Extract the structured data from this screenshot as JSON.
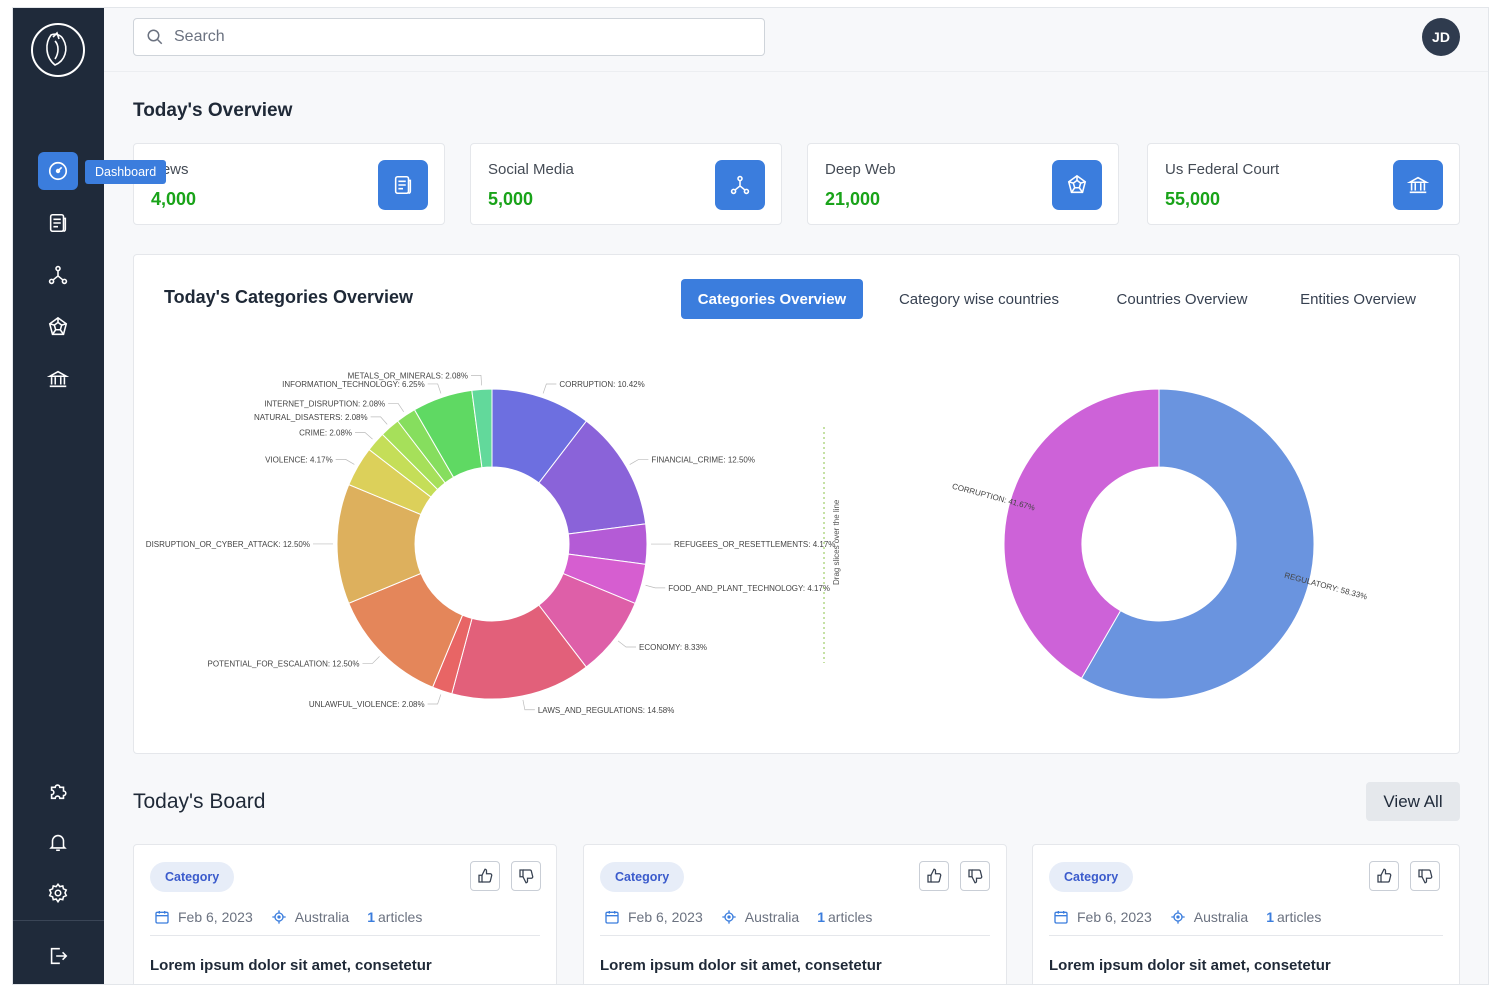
{
  "search": {
    "placeholder": "Search"
  },
  "user": {
    "initials": "JD"
  },
  "sidebar": {
    "tooltip": "Dashboard",
    "items": [
      {
        "name": "dashboard-icon"
      },
      {
        "name": "news-icon"
      },
      {
        "name": "network-icon"
      },
      {
        "name": "deep-web-icon"
      },
      {
        "name": "court-icon"
      },
      {
        "name": "puzzle-icon"
      },
      {
        "name": "bell-icon"
      },
      {
        "name": "gear-icon"
      },
      {
        "name": "logout-icon"
      }
    ]
  },
  "overview": {
    "title": "Today's Overview",
    "stats": [
      {
        "label": "News",
        "value": "4,000",
        "icon": "news-icon"
      },
      {
        "label": "Social Media",
        "value": "5,000",
        "icon": "network-icon"
      },
      {
        "label": "Deep Web",
        "value": "21,000",
        "icon": "deep-web-icon"
      },
      {
        "label": "Us Federal Court",
        "value": "55,000",
        "icon": "court-icon"
      }
    ]
  },
  "categories": {
    "title": "Today's Categories Overview",
    "tabs": [
      "Categories Overview",
      "Category wise countries",
      "Countries Overview",
      "Entities Overview"
    ],
    "active_tab": 0,
    "drag_hint": "Drag slices over the line"
  },
  "chart_data": [
    {
      "type": "pie",
      "donut": true,
      "slices": [
        {
          "label": "CORRUPTION: 10.42%",
          "value": 10.42,
          "color": "#6d6fe0"
        },
        {
          "label": "FINANCIAL_CRIME: 12.50%",
          "value": 12.5,
          "color": "#8a63d9"
        },
        {
          "label": "REFUGEES_OR_RESETTLEMENTS: 4.17%",
          "value": 4.17,
          "color": "#b45bd6"
        },
        {
          "label": "FOOD_AND_PLANT_TECHNOLOGY: 4.17%",
          "value": 4.17,
          "color": "#d65ed0"
        },
        {
          "label": "ECONOMY: 8.33%",
          "value": 8.33,
          "color": "#de5fa8"
        },
        {
          "label": "LAWS_AND_REGULATIONS: 14.58%",
          "value": 14.58,
          "color": "#e2607a"
        },
        {
          "label": "UNLAWFUL_VIOLENCE: 2.08%",
          "value": 2.08,
          "color": "#e86565"
        },
        {
          "label": "POTENTIAL_FOR_ESCALATION: 12.50%",
          "value": 12.5,
          "color": "#e4865a"
        },
        {
          "label": "DISRUPTION_OR_CYBER_ATTACK: 12.50%",
          "value": 12.5,
          "color": "#ddb05d"
        },
        {
          "label": "VIOLENCE: 4.17%",
          "value": 4.17,
          "color": "#dcd05a"
        },
        {
          "label": "CRIME: 2.08%",
          "value": 2.08,
          "color": "#c5de58"
        },
        {
          "label": "NATURAL_DISASTERS: 2.08%",
          "value": 2.08,
          "color": "#a6e05a"
        },
        {
          "label": "INTERNET_DISRUPTION: 2.08%",
          "value": 2.08,
          "color": "#86de5e"
        },
        {
          "label": "INFORMATION_TECHNOLOGY: 6.25%",
          "value": 6.25,
          "color": "#5fd963"
        },
        {
          "label": "METALS_OR_MINERALS: 2.08%",
          "value": 2.08,
          "color": "#62d99b"
        }
      ]
    },
    {
      "type": "pie",
      "donut": true,
      "slices": [
        {
          "label": "REGULATORY: 58.33%",
          "value": 58.33,
          "color": "#6a94df"
        },
        {
          "label": "CORRUPTION: 41.67%",
          "value": 41.67,
          "color": "#cd62d8"
        }
      ]
    }
  ],
  "board": {
    "title": "Today's Board",
    "view_all": "View All",
    "cards": [
      {
        "category": "Category",
        "date": "Feb 6, 2023",
        "country": "Australia",
        "count": "1",
        "count_label": "articles",
        "text": "Lorem ipsum dolor sit amet, consetetur"
      },
      {
        "category": "Category",
        "date": "Feb 6, 2023",
        "country": "Australia",
        "count": "1",
        "count_label": "articles",
        "text": "Lorem ipsum dolor sit amet, consetetur"
      },
      {
        "category": "Category",
        "date": "Feb 6, 2023",
        "country": "Australia",
        "count": "1",
        "count_label": "articles",
        "text": "Lorem ipsum dolor sit amet, consetetur"
      }
    ]
  }
}
